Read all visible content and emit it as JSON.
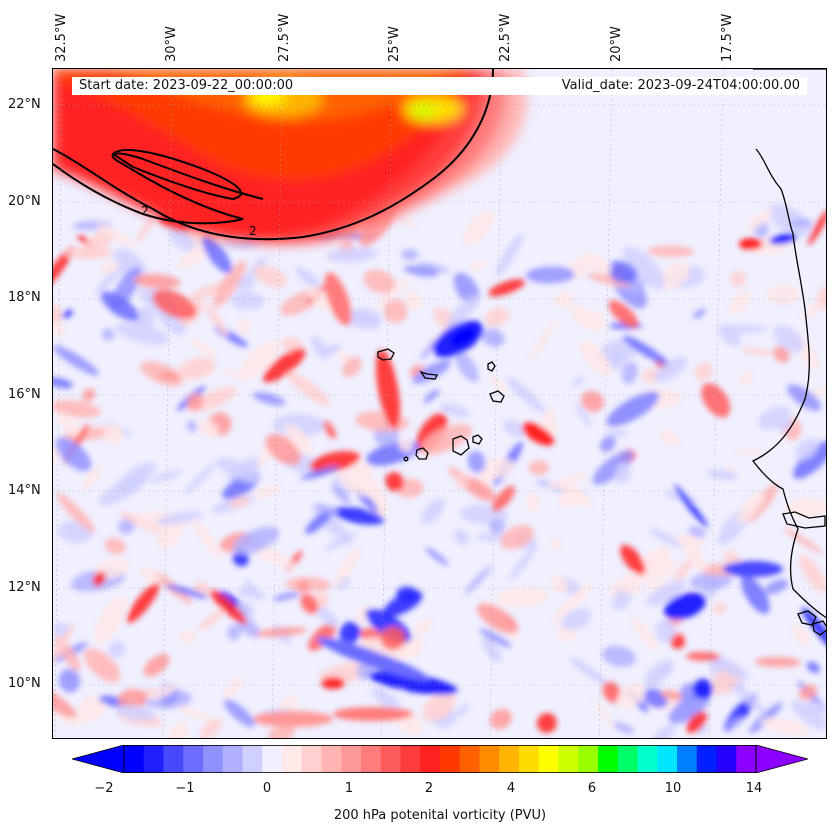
{
  "map": {
    "start_date": "Start date: 2023-09-22_00:00:00",
    "valid_date": "Valid_date: 2023-09-24T04:00:00.00",
    "lon_labels": [
      "32.5°W",
      "30°W",
      "27.5°W",
      "25°W",
      "22.5°W",
      "20°W",
      "17.5°W"
    ],
    "lat_labels": [
      "22°N",
      "20°N",
      "18°N",
      "16°N",
      "14°N",
      "12°N",
      "10°N"
    ],
    "contour_labels": [
      "2",
      "2"
    ],
    "extent": {
      "lon_min": -33,
      "lon_max": -15.6,
      "lat_min": 8.9,
      "lat_max": 22.8
    }
  },
  "colorbar": {
    "label": "200 hPa potenital vorticity (PVU)",
    "tick_labels": [
      "−2",
      "−1",
      "0",
      "1",
      "2",
      "4",
      "6",
      "10",
      "14"
    ],
    "colors": [
      "#0000ff",
      "#2020ff",
      "#4848ff",
      "#6c6cff",
      "#9090ff",
      "#b0b0ff",
      "#d0d0ff",
      "#f0f0ff",
      "#ffe8e8",
      "#ffd0d0",
      "#ffb4b4",
      "#ff9898",
      "#ff7c7c",
      "#ff5c5c",
      "#ff3c3c",
      "#ff2020",
      "#ff3a00",
      "#ff6000",
      "#ff8c00",
      "#ffb400",
      "#ffdc00",
      "#ffff00",
      "#ccff00",
      "#99ff00",
      "#00ff00",
      "#00ff66",
      "#00ffcc",
      "#00e5ff",
      "#0080ff",
      "#0020ff",
      "#2400ff",
      "#8c00ff"
    ],
    "extend": "both"
  },
  "legend_colors": {
    "negative": "#2020ff",
    "positive": "#ff2020",
    "high": "#ffff00"
  }
}
